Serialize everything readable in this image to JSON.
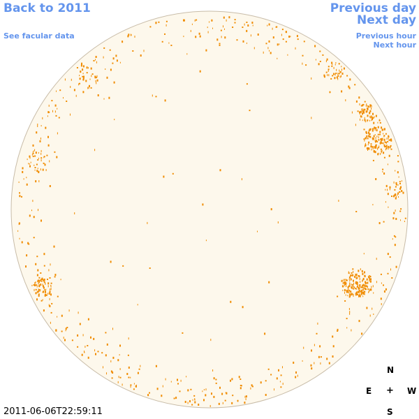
{
  "nav": {
    "back_label": "Back to 2011",
    "facular_label": "See facular data",
    "prev_day_label": "Previous day",
    "next_day_label": "Next day",
    "prev_hour_label": "Previous hour",
    "next_hour_label": "Next hour"
  },
  "timestamp": "2011-06-06T22:59:11",
  "compass": {
    "north": "N",
    "south": "S",
    "east": "E",
    "west": "W",
    "center": "+"
  },
  "colors": {
    "link": "#6495ed",
    "disk_fill": "#fdf8ec",
    "disk_border": "#c8bca8",
    "facula": "#f08c00"
  }
}
